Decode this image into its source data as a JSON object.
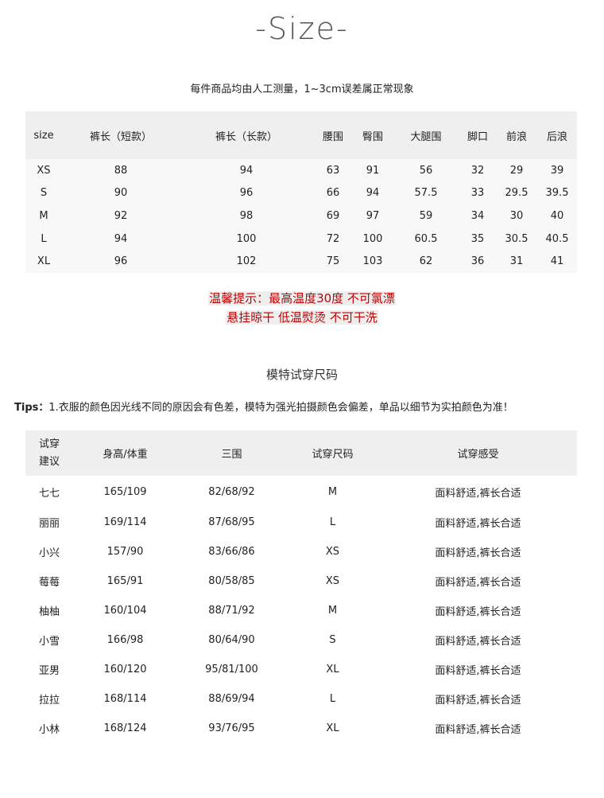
{
  "title": "-Size-",
  "measure_note": "每件商品均由人工测量，1~3cm误差属正常现象",
  "size_table": {
    "headers": [
      "size",
      "裤长（短款）",
      "裤长（长款）",
      "腰围",
      "臀围",
      "大腿围",
      "脚口",
      "前浪",
      "后浪"
    ],
    "rows": [
      [
        "XS",
        "88",
        "94",
        "63",
        "91",
        "56",
        "32",
        "29",
        "39"
      ],
      [
        "S",
        "90",
        "96",
        "66",
        "94",
        "57.5",
        "33",
        "29.5",
        "39.5"
      ],
      [
        "M",
        "92",
        "98",
        "69",
        "97",
        "59",
        "34",
        "30",
        "40"
      ],
      [
        "L",
        "94",
        "100",
        "72",
        "100",
        "60.5",
        "35",
        "30.5",
        "40.5"
      ],
      [
        "XL",
        "96",
        "102",
        "75",
        "103",
        "62",
        "36",
        "31",
        "41"
      ]
    ]
  },
  "care_notes": [
    "温馨提示：最高温度30度 不可氯漂",
    "悬挂晾干 低温熨烫 不可干洗"
  ],
  "model_section_title": "模特试穿尺码",
  "tips": {
    "label": "Tips：",
    "text": "1.衣服的颜色因光线不同的原因会有色差，模特为强光拍摄颜色会偏差，单品以细节为实拍颜色为准！"
  },
  "model_table": {
    "headers": [
      "试穿建议",
      "身高/体重",
      "三围",
      "试穿尺码",
      "试穿感受"
    ],
    "rows": [
      [
        "七七",
        "165/109",
        "82/68/92",
        "M",
        "面料舒适,裤长合适"
      ],
      [
        "丽丽",
        "169/114",
        "87/68/95",
        "L",
        "面料舒适,裤长合适"
      ],
      [
        "小兴",
        "157/90",
        "83/66/86",
        "XS",
        "面料舒适,裤长合适"
      ],
      [
        "莓莓",
        "165/91",
        "80/58/85",
        "XS",
        "面料舒适,裤长合适"
      ],
      [
        "柚柚",
        "160/104",
        "88/71/92",
        "M",
        "面料舒适,裤长合适"
      ],
      [
        "小雪",
        "166/98",
        "80/64/90",
        "S",
        "面料舒适,裤长合适"
      ],
      [
        "亚男",
        "160/120",
        "95/81/100",
        "XL",
        "面料舒适,裤长合适"
      ],
      [
        "拉拉",
        "168/114",
        "88/69/94",
        "L",
        "面料舒适,裤长合适"
      ],
      [
        "小林",
        "168/124",
        "93/76/95",
        "XL",
        "面料舒适,裤长合适"
      ]
    ]
  },
  "colors": {
    "warning": "#c00000",
    "header_bg": "#efefef",
    "body_bg": "#f8f8f8"
  }
}
